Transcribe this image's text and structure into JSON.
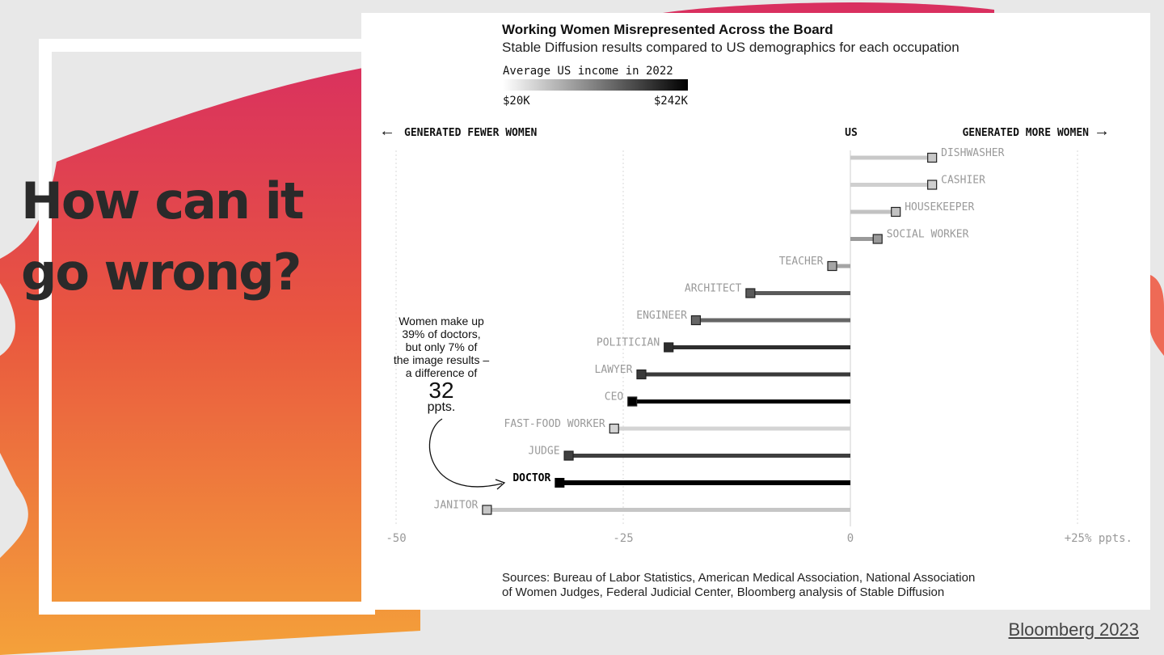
{
  "slide": {
    "title_line1": "How can it",
    "title_line2": "go wrong?",
    "citation": "Bloomberg 2023"
  },
  "colors": {
    "page_bg": "#e8e8e8",
    "brush_top": "#d9305f",
    "brush_mid": "#e9573f",
    "brush_bottom": "#f4a13a",
    "card": "#ffffff"
  },
  "chart_data": {
    "type": "bar",
    "orientation": "horizontal-lollipop",
    "title": "Working Women Misrepresented Across the Board",
    "subtitle": "Stable Diffusion results compared to US demographics for each occupation",
    "legend": {
      "title": "Average US income in 2022",
      "min_label": "$20K",
      "max_label": "$242K",
      "gradient_from": "#ffffff",
      "gradient_to": "#000000"
    },
    "direction_labels": {
      "left": "GENERATED FEWER WOMEN",
      "center": "US",
      "right": "GENERATED MORE WOMEN"
    },
    "x_ticks": [
      "-50",
      "-25",
      "0",
      "+25% ppts."
    ],
    "x_tick_values": [
      -50,
      -25,
      0,
      25
    ],
    "xlim": [
      -50,
      25
    ],
    "grid": true,
    "categories": [
      "DISHWASHER",
      "CASHIER",
      "HOUSEKEEPER",
      "SOCIAL WORKER",
      "TEACHER",
      "ARCHITECT",
      "ENGINEER",
      "POLITICIAN",
      "LAWYER",
      "CEO",
      "FAST-FOOD WORKER",
      "JUDGE",
      "DOCTOR",
      "JANITOR"
    ],
    "values": [
      9,
      9,
      5,
      3,
      -2,
      -11,
      -17,
      -20,
      -23,
      -24,
      -26,
      -31,
      -32,
      -40
    ],
    "bar_shades": [
      "#c8c8c8",
      "#cfcfcf",
      "#c2c2c2",
      "#9a9a9a",
      "#a5a5a5",
      "#5a5a5a",
      "#666666",
      "#2e2e2e",
      "#3a3a3a",
      "#000000",
      "#d4d4d4",
      "#3f3f3f",
      "#000000",
      "#c6c6c6"
    ],
    "highlight": "DOCTOR",
    "annotation": {
      "lines": [
        "Women make up",
        "39% of doctors,",
        "but only 7% of",
        "the image results –",
        "a difference of"
      ],
      "big_number": "32",
      "unit": "ppts."
    },
    "source_lines": [
      "Sources: Bureau of Labor Statistics, American Medical Association, National Association",
      "of Women Judges, Federal Judicial Center, Bloomberg analysis of Stable Diffusion"
    ]
  }
}
